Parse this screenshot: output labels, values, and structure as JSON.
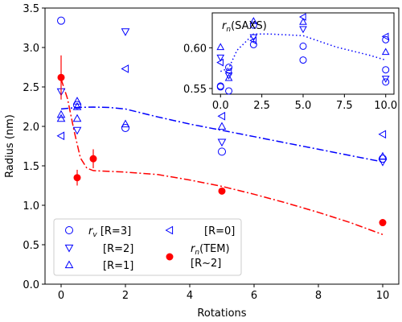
{
  "chart_data": [
    {
      "type": "scatter",
      "xlabel": "Rotations",
      "ylabel": "Radius (nm)",
      "xlim": [
        -0.5,
        10.5
      ],
      "ylim": [
        0,
        3.5
      ],
      "xticks": [
        "0",
        "2",
        "4",
        "6",
        "8",
        "10"
      ],
      "yticks": [
        "0.0",
        "0.5",
        "1.0",
        "1.5",
        "2.0",
        "2.5",
        "3.0",
        "3.5"
      ],
      "grid": false,
      "legend_position": "lower-left",
      "legend": {
        "rv_label": "$r_v$ [R=3]",
        "r2_label": "[R=2]",
        "r1_label": "[R=1]",
        "r0_label": "[R=0]",
        "tem_label": "$r_n$(TEM)",
        "tem_sub": "[R~2]"
      },
      "colors": {
        "blue": "#0000ff",
        "red": "#ff0000"
      },
      "series": [
        {
          "marker": "circle-open",
          "color": "#0000ff",
          "x": [
            0,
            0.5,
            2,
            5,
            10
          ],
          "y": [
            3.34,
            2.27,
            1.98,
            1.68,
            1.59
          ]
        },
        {
          "marker": "triangle-down-open",
          "color": "#0000ff",
          "x": [
            0,
            0.5,
            2,
            5,
            10
          ],
          "y": [
            2.44,
            1.95,
            3.2,
            1.8,
            1.55
          ]
        },
        {
          "marker": "triangle-up-open",
          "color": "#0000ff",
          "x": [
            0,
            0,
            0.5,
            0.5,
            0.5,
            2,
            5,
            10
          ],
          "y": [
            2.1,
            2.15,
            2.32,
            2.1,
            2.25,
            2.03,
            2.0,
            1.62
          ]
        },
        {
          "marker": "triangle-left-open",
          "color": "#0000ff",
          "x": [
            0,
            2,
            5,
            10
          ],
          "y": [
            1.88,
            2.73,
            2.13,
            1.9
          ]
        },
        {
          "marker": "circle-filled",
          "color": "#ff0000",
          "x": [
            0,
            0.5,
            1,
            5,
            10
          ],
          "y": [
            2.62,
            1.35,
            1.59,
            1.18,
            0.78
          ],
          "err": [
            0.28,
            0.1,
            0.12,
            0,
            0
          ]
        }
      ],
      "fit_lines": [
        {
          "style": "dash-dot",
          "color": "#0000ff",
          "x": [
            0,
            0.5,
            1,
            1.5,
            2,
            3,
            4,
            5,
            6,
            7,
            8,
            9,
            10
          ],
          "y": [
            2.22,
            2.24,
            2.245,
            2.24,
            2.22,
            2.12,
            2.03,
            1.95,
            1.87,
            1.79,
            1.71,
            1.63,
            1.55
          ]
        },
        {
          "style": "dash-dot",
          "color": "#ff0000",
          "x": [
            0,
            0.2,
            0.4,
            0.6,
            0.8,
            1,
            1.5,
            2,
            3,
            4,
            5,
            6,
            7,
            8,
            9,
            10
          ],
          "y": [
            2.6,
            2.35,
            1.95,
            1.6,
            1.47,
            1.44,
            1.43,
            1.42,
            1.39,
            1.32,
            1.24,
            1.14,
            1.03,
            0.91,
            0.78,
            0.63
          ]
        }
      ]
    },
    {
      "type": "scatter",
      "title": "$r_n$(SAXS)",
      "xlim": [
        -0.5,
        10.5
      ],
      "ylim": [
        0.543,
        0.643
      ],
      "xticks": [
        "0.0",
        "2.5",
        "5.0",
        "7.5",
        "10.0"
      ],
      "yticks": [
        "0.55",
        "0.60"
      ],
      "colors": {
        "blue": "#0000ff"
      },
      "series": [
        {
          "marker": "circle-open",
          "color": "#0000ff",
          "x": [
            0,
            0,
            0.5,
            0.5,
            2,
            2,
            5,
            5,
            10,
            10,
            10
          ],
          "y": [
            0.553,
            0.552,
            0.576,
            0.547,
            0.604,
            0.628,
            0.585,
            0.602,
            0.573,
            0.558,
            0.61
          ]
        },
        {
          "marker": "triangle-down-open",
          "color": "#0000ff",
          "x": [
            0,
            0.5,
            2,
            5,
            10
          ],
          "y": [
            0.588,
            0.566,
            0.613,
            0.623,
            0.562
          ]
        },
        {
          "marker": "triangle-up-open",
          "color": "#0000ff",
          "x": [
            0,
            0.5,
            2,
            5,
            10
          ],
          "y": [
            0.601,
            0.563,
            0.633,
            0.632,
            0.595
          ]
        },
        {
          "marker": "triangle-left-open",
          "color": "#0000ff",
          "x": [
            0,
            0.5,
            2,
            5,
            10
          ],
          "y": [
            0.582,
            0.571,
            0.609,
            0.638,
            0.614
          ]
        }
      ],
      "fit_lines": [
        {
          "style": "dotted",
          "color": "#0000ff",
          "x": [
            0,
            0.5,
            1,
            2,
            3,
            4,
            5,
            6,
            7,
            8,
            9,
            10
          ],
          "y": [
            0.571,
            0.575,
            0.597,
            0.617,
            0.617,
            0.616,
            0.615,
            0.608,
            0.601,
            0.596,
            0.591,
            0.585
          ]
        }
      ]
    }
  ]
}
